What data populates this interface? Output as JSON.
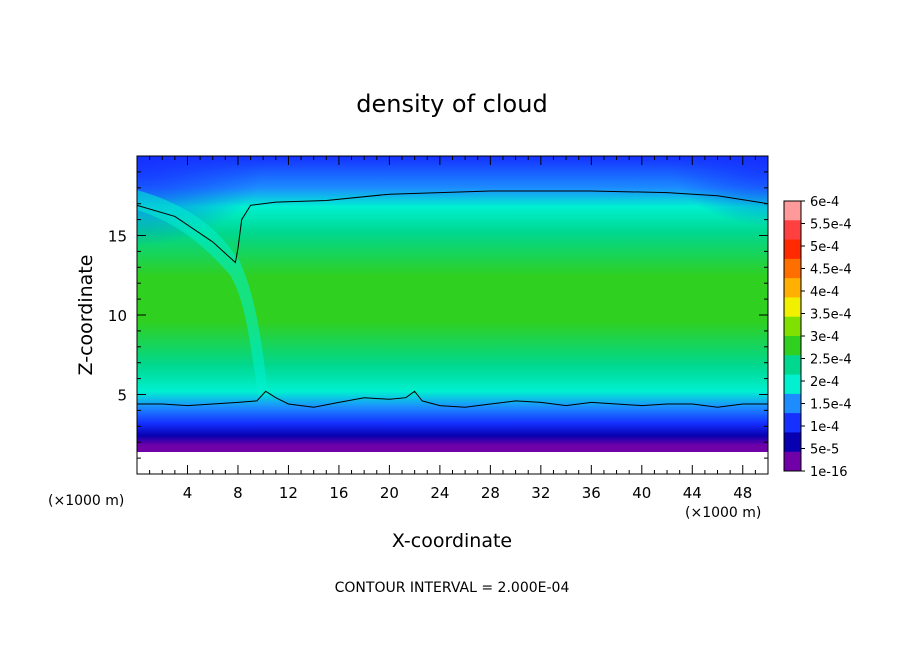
{
  "chart_data": {
    "type": "heatmap",
    "title": "density of cloud",
    "xlabel": "X-coordinate",
    "ylabel": "Z-coordinate",
    "x_unit_left": "(×1000 m)",
    "x_unit_right": "(×1000 m)",
    "xlim": [
      0,
      50
    ],
    "ylim": [
      0,
      20
    ],
    "x_ticks": [
      4,
      8,
      12,
      16,
      20,
      24,
      28,
      32,
      36,
      40,
      44,
      48
    ],
    "y_ticks": [
      5,
      10,
      15
    ],
    "footer": "CONTOUR INTERVAL = 2.000E-04",
    "colorbar": {
      "labels": [
        "6e-4",
        "5.5e-4",
        "5e-4",
        "4.5e-4",
        "4e-4",
        "3.5e-4",
        "3e-4",
        "2.5e-4",
        "2e-4",
        "1.5e-4",
        "1e-4",
        "5e-5",
        "1e-16"
      ],
      "colors": [
        "#ff9a9a",
        "#ff4040",
        "#ff2a00",
        "#ff6f00",
        "#ffb000",
        "#f0f000",
        "#80e000",
        "#30d020",
        "#00d890",
        "#00f0d0",
        "#1c8cff",
        "#1530ff",
        "#0800b0",
        "#7000a8"
      ]
    },
    "field_description_levels": {
      "upper_layer": "1.5e-4 to 2e-4",
      "core": "2.5e-4 to 3e-4",
      "base_layer": "5e-5 to 1e-4"
    },
    "contour_2e-4": {
      "upper": [
        [
          0,
          16.9
        ],
        [
          3,
          16.2
        ],
        [
          6,
          14.6
        ],
        [
          7.8,
          13.3
        ],
        [
          8,
          14.2
        ],
        [
          8.3,
          16
        ],
        [
          9,
          16.9
        ],
        [
          11,
          17.1
        ],
        [
          15,
          17.2
        ],
        [
          20,
          17.6
        ],
        [
          28,
          17.8
        ],
        [
          36,
          17.8
        ],
        [
          42,
          17.7
        ],
        [
          46,
          17.5
        ],
        [
          50,
          17.0
        ]
      ],
      "lower": [
        [
          0,
          4.4
        ],
        [
          2,
          4.4
        ],
        [
          4,
          4.3
        ],
        [
          6,
          4.4
        ],
        [
          8,
          4.5
        ],
        [
          9.5,
          4.6
        ],
        [
          10.2,
          5.2
        ],
        [
          11,
          4.8
        ],
        [
          12,
          4.4
        ],
        [
          14,
          4.2
        ],
        [
          16,
          4.5
        ],
        [
          18,
          4.8
        ],
        [
          20,
          4.7
        ],
        [
          21.3,
          4.8
        ],
        [
          22,
          5.2
        ],
        [
          22.6,
          4.6
        ],
        [
          24,
          4.3
        ],
        [
          26,
          4.2
        ],
        [
          28,
          4.4
        ],
        [
          30,
          4.6
        ],
        [
          32,
          4.5
        ],
        [
          34,
          4.3
        ],
        [
          36,
          4.5
        ],
        [
          38,
          4.4
        ],
        [
          40,
          4.3
        ],
        [
          42,
          4.4
        ],
        [
          44,
          4.4
        ],
        [
          46,
          4.2
        ],
        [
          48,
          4.4
        ],
        [
          50,
          4.4
        ]
      ]
    }
  }
}
